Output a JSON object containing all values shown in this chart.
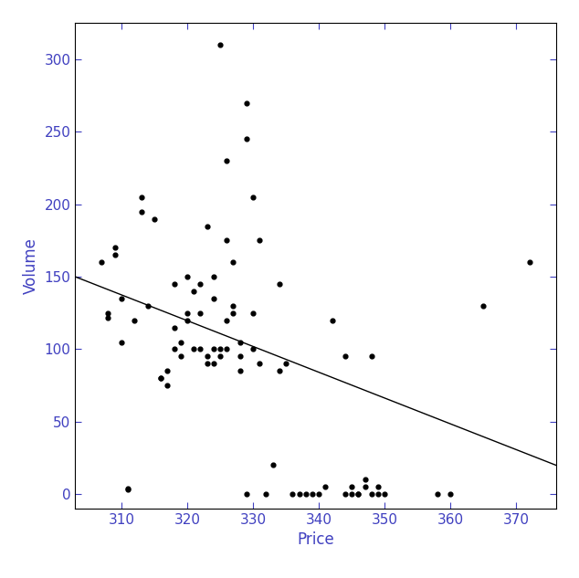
{
  "x": [
    307,
    308,
    308,
    309,
    309,
    310,
    310,
    311,
    311,
    312,
    313,
    313,
    314,
    315,
    316,
    316,
    317,
    317,
    318,
    318,
    318,
    319,
    319,
    320,
    320,
    320,
    321,
    321,
    322,
    322,
    322,
    323,
    323,
    323,
    324,
    324,
    324,
    324,
    325,
    325,
    325,
    326,
    326,
    326,
    326,
    327,
    327,
    327,
    328,
    328,
    328,
    329,
    329,
    329,
    330,
    330,
    330,
    331,
    331,
    332,
    333,
    334,
    334,
    335,
    336,
    337,
    338,
    339,
    340,
    341,
    342,
    344,
    344,
    345,
    345,
    346,
    346,
    347,
    347,
    348,
    348,
    349,
    349,
    350,
    358,
    360,
    365,
    372
  ],
  "y": [
    160,
    122,
    125,
    165,
    170,
    105,
    135,
    3,
    4,
    120,
    195,
    205,
    130,
    190,
    80,
    80,
    75,
    85,
    100,
    115,
    145,
    95,
    105,
    120,
    125,
    150,
    100,
    140,
    100,
    125,
    145,
    90,
    95,
    185,
    90,
    100,
    135,
    150,
    95,
    100,
    310,
    100,
    120,
    175,
    230,
    125,
    130,
    160,
    85,
    95,
    105,
    0,
    245,
    270,
    100,
    125,
    205,
    90,
    175,
    0,
    20,
    145,
    85,
    90,
    0,
    0,
    0,
    0,
    0,
    5,
    120,
    0,
    95,
    0,
    5,
    0,
    0,
    5,
    10,
    0,
    95,
    0,
    5,
    0,
    0,
    0,
    130,
    160
  ],
  "xlim": [
    303,
    376
  ],
  "ylim": [
    -10,
    325
  ],
  "xticks": [
    310,
    320,
    330,
    340,
    350,
    360,
    370
  ],
  "yticks": [
    0,
    50,
    100,
    150,
    200,
    250,
    300
  ],
  "xlabel": "Price",
  "ylabel": "Volume",
  "point_color": "black",
  "point_size": 12,
  "line_color": "black",
  "line_width": 1.0,
  "regression_x0": 303,
  "regression_y0": 150.0,
  "regression_x1": 376,
  "regression_y1": 20.0,
  "bg_color": "white",
  "label_color": "#4040C0",
  "tick_label_color": "#4040C0",
  "fig_width": 6.34,
  "fig_height": 6.33
}
